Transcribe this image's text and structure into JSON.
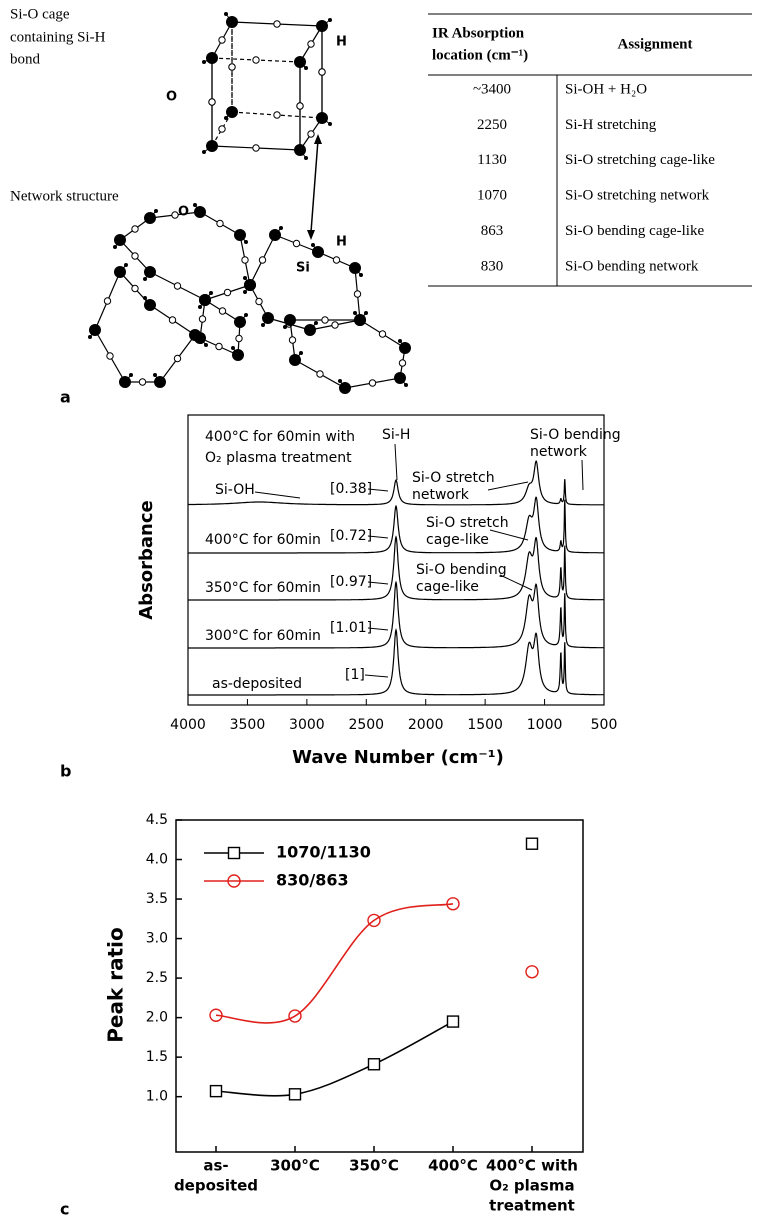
{
  "figure_a": {
    "panel_label": "a",
    "cage_caption": [
      "Si-O cage",
      "containing Si-H",
      "bond"
    ],
    "network_caption": "Network structure",
    "atom_labels": [
      "O",
      "H",
      "Si",
      "O",
      "H"
    ]
  },
  "table": {
    "header": [
      [
        "IR Absorption",
        "location (cm⁻¹)"
      ],
      [
        "Assignment"
      ]
    ],
    "rows": [
      [
        "~3400",
        "Si-OH + H₂O"
      ],
      [
        "2250",
        "Si-H stretching"
      ],
      [
        "1130",
        "Si-O stretching cage-like"
      ],
      [
        "1070",
        "Si-O stretching network"
      ],
      [
        "863",
        "Si-O bending cage-like"
      ],
      [
        "830",
        "Si-O bending network"
      ]
    ]
  },
  "chart_data": [
    {
      "type": "spectrum",
      "panel_label": "b",
      "x_label": "Wave Number (cm⁻¹)",
      "y_label": "Absorbance",
      "xlim": [
        4000,
        500
      ],
      "xticks": [
        4000,
        3500,
        3000,
        2500,
        2000,
        1500,
        1000,
        500
      ],
      "categories": [
        [
          "as-deposited"
        ],
        [
          "300°C for 60min"
        ],
        [
          "350°C for 60min"
        ],
        [
          "400°C for 60min"
        ],
        [
          "400°C for 60min with",
          "O₂ plasma treatment"
        ]
      ],
      "values": [
        1,
        1.01,
        0.97,
        0.72,
        0.38
      ],
      "value_labels": [
        "[1]",
        "[1.01]",
        "[0.97]",
        "[0.72]",
        "[0.38]"
      ],
      "annotations": [
        [
          "Si-H"
        ],
        [
          "Si-OH"
        ],
        [
          "Si-O stretch",
          "network"
        ],
        [
          "Si-O bending",
          "network"
        ],
        [
          "Si-O stretch",
          "cage-like"
        ],
        [
          "Si-O bending",
          "cage-like"
        ]
      ]
    },
    {
      "type": "line",
      "panel_label": "c",
      "y_label": "Peak ratio",
      "categories": [
        [
          "as-",
          "deposited"
        ],
        [
          "300°C"
        ],
        [
          "350°C"
        ],
        [
          "400°C"
        ],
        [
          "400°C with",
          "O₂ plasma",
          "treatment"
        ]
      ],
      "ylim": [
        0.3,
        4.5
      ],
      "yticks": [
        {
          "value": 1,
          "label": "1.0"
        },
        1.5,
        {
          "value": 2,
          "label": "2.0"
        },
        2.5,
        {
          "value": 3,
          "label": "3.0"
        },
        3.5,
        {
          "value": 4,
          "label": "4.0"
        },
        4.5
      ],
      "legend": "upper left",
      "series": [
        {
          "name": "1070/1130",
          "color": "#000000",
          "marker": "square",
          "values": [
            1.07,
            1.03,
            1.41,
            1.95,
            4.2
          ]
        },
        {
          "name": "830/863",
          "color": "#e0201b",
          "marker": "circle",
          "values": [
            2.03,
            2.02,
            3.23,
            3.44,
            2.58
          ]
        }
      ]
    }
  ]
}
